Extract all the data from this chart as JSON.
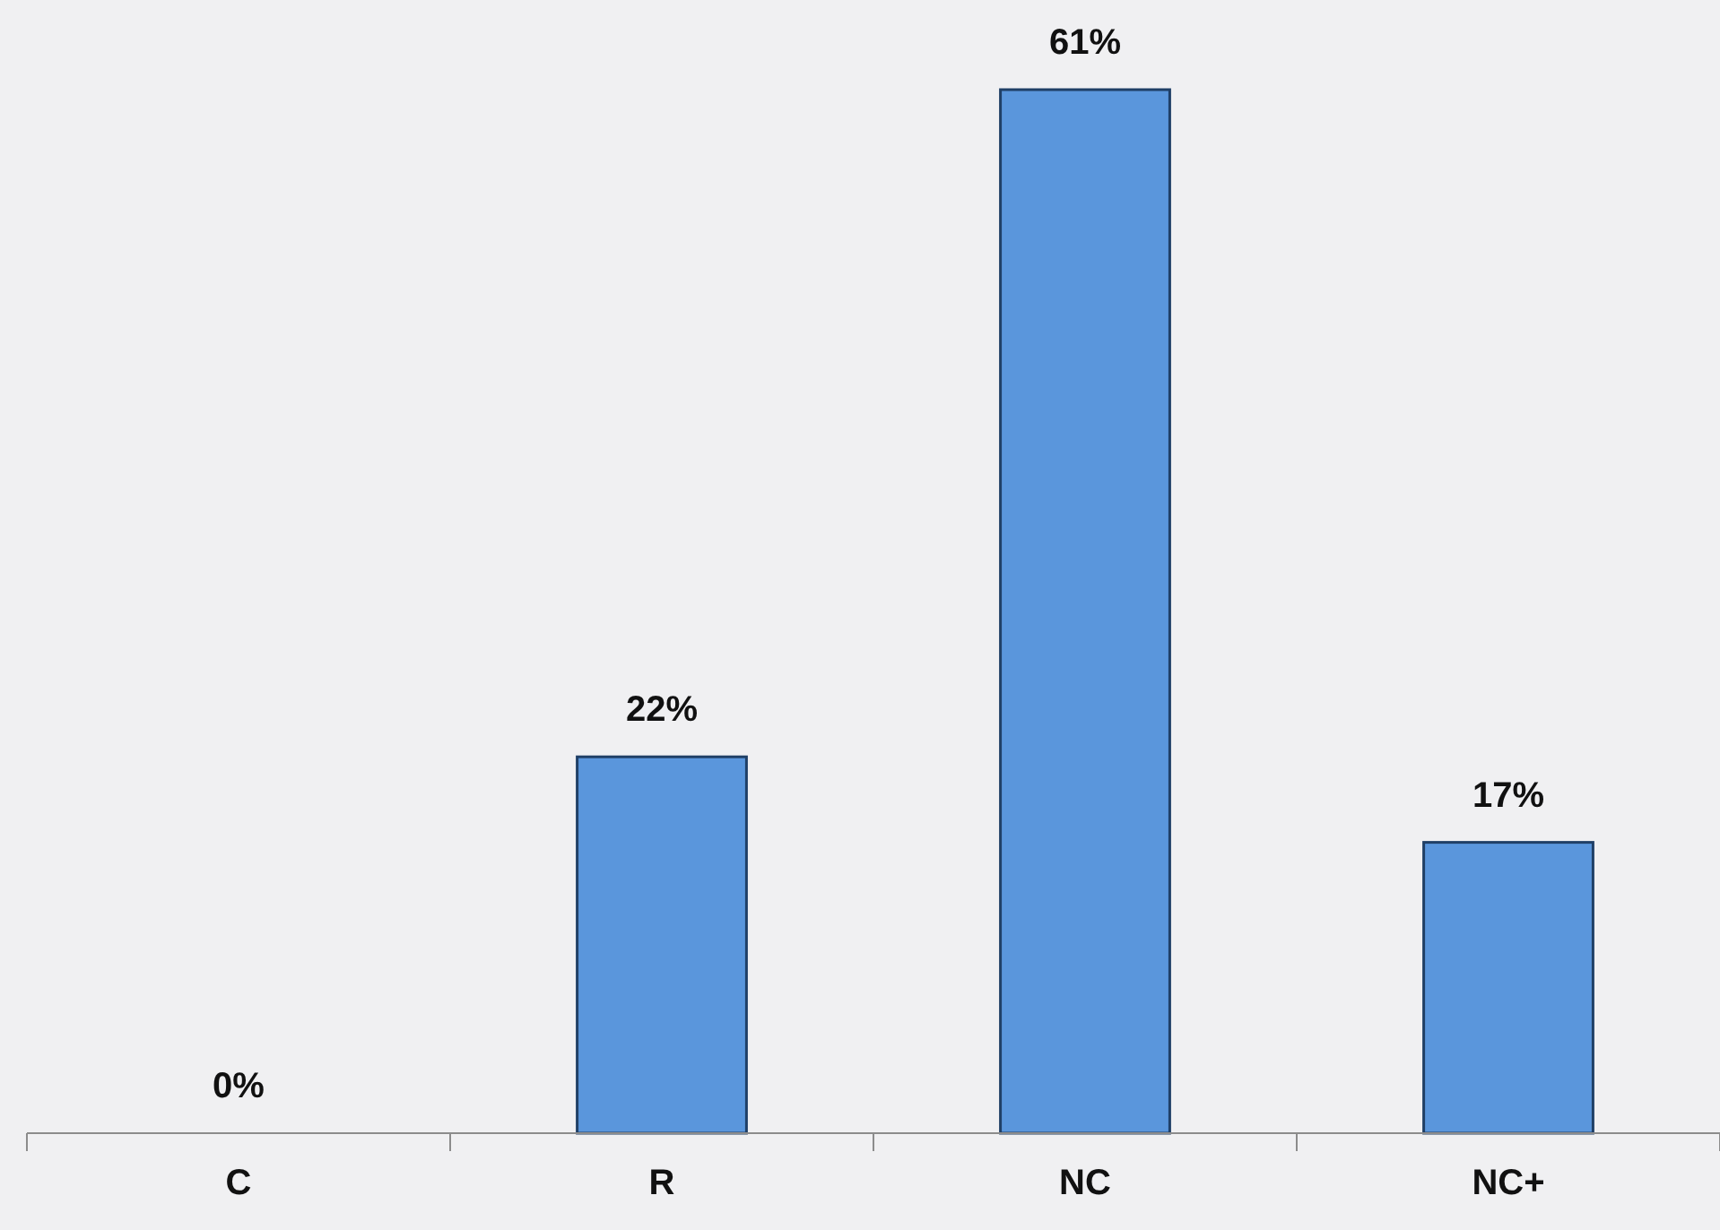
{
  "chart_data": {
    "type": "bar",
    "categories": [
      "C",
      "R",
      "NC",
      "NC+"
    ],
    "values": [
      0,
      22,
      61,
      17
    ],
    "value_labels": [
      "0%",
      "22%",
      "61%",
      "17%"
    ],
    "color": "#5a96dc"
  }
}
